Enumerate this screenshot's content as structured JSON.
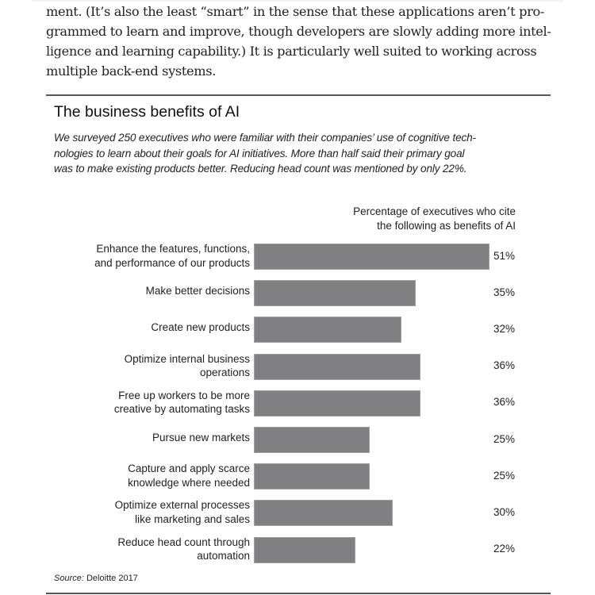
{
  "article": {
    "lines": [
      "ment. (It’s also the least “smart” in the sense that these applications aren’t pro-",
      "grammed to learn and improve, though developers are slowly adding more intel-",
      "ligence and learning capability.) It is particularly well suited to working across",
      "multiple back-end systems."
    ]
  },
  "chart_data": {
    "type": "bar",
    "orientation": "horizontal",
    "title": "The business benefits of AI",
    "subtitle_lines": [
      "We surveyed 250 executives who were familiar with their companies’ use of cognitive tech-",
      "nologies to learn about their goals for AI initiatives. More than half said their primary goal",
      "was to make existing products better. Reducing head count was mentioned by only 22%."
    ],
    "axis_title_lines": [
      "Percentage of executives who cite",
      "the following as benefits of AI"
    ],
    "categories": [
      [
        "Enhance the features, functions,",
        "and performance of our products"
      ],
      [
        "Make better decisions"
      ],
      [
        "Create new products"
      ],
      [
        "Optimize internal business",
        "operations"
      ],
      [
        "Free up workers to be more",
        "creative by automating tasks"
      ],
      [
        "Pursue new markets"
      ],
      [
        "Capture and apply scarce",
        "knowledge where needed"
      ],
      [
        "Optimize external processes",
        "like marketing and sales"
      ],
      [
        "Reduce head count through",
        "automation"
      ]
    ],
    "values": [
      51,
      35,
      32,
      36,
      36,
      25,
      25,
      30,
      22
    ],
    "value_labels": [
      "51%",
      "35%",
      "32%",
      "36%",
      "36%",
      "25%",
      "25%",
      "30%",
      "22%"
    ],
    "xlim": [
      0,
      51
    ],
    "unit": "%",
    "bar_color": "#808083",
    "grid": false,
    "source_prefix": "Source:",
    "source_text": " Deloitte 2017"
  }
}
